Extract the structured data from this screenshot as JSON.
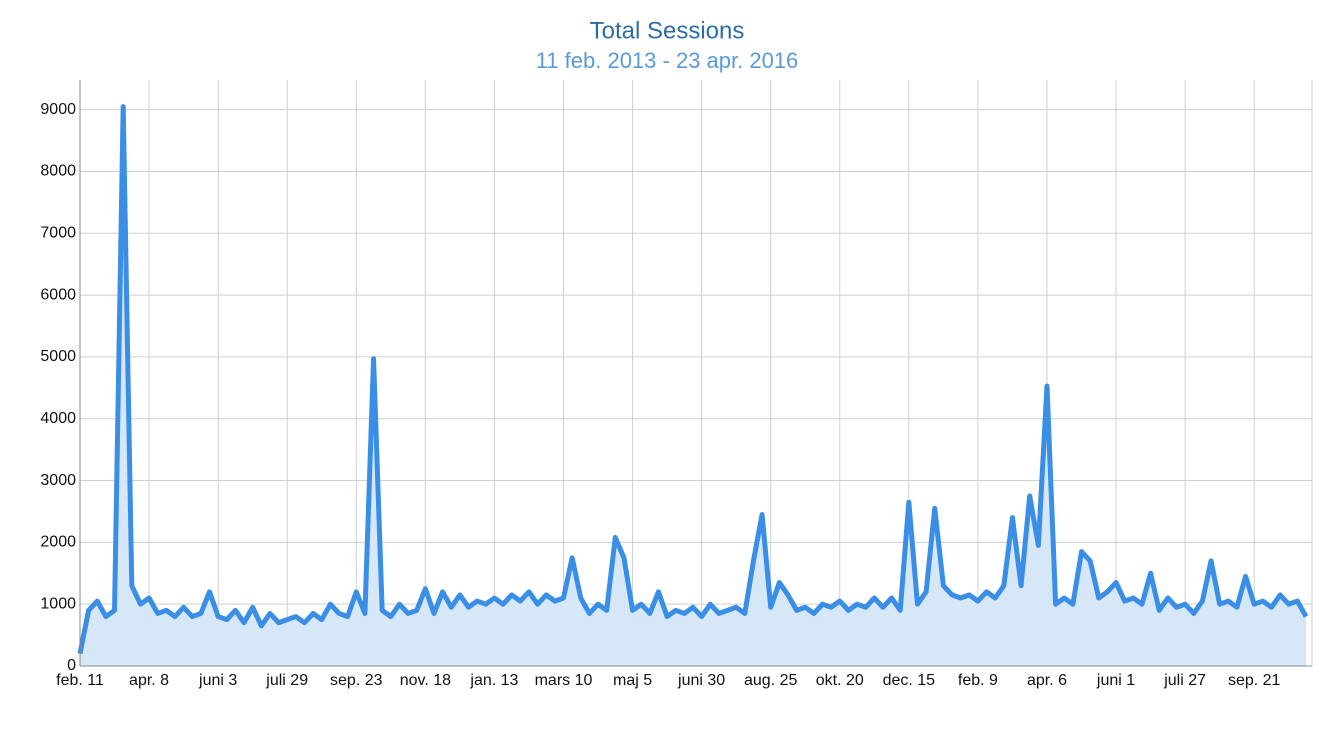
{
  "chart_data": {
    "type": "area",
    "title": "Total Sessions",
    "subtitle": "11 feb. 2013 - 23 apr. 2016",
    "categories": [
      "feb. 11",
      null,
      null,
      null,
      null,
      null,
      null,
      null,
      "apr. 8",
      null,
      null,
      null,
      null,
      null,
      null,
      null,
      "juni 3",
      null,
      null,
      null,
      null,
      null,
      null,
      null,
      "juli 29",
      null,
      null,
      null,
      null,
      null,
      null,
      null,
      "sep. 23",
      null,
      null,
      null,
      null,
      null,
      null,
      null,
      "nov. 18",
      null,
      null,
      null,
      null,
      null,
      null,
      null,
      "jan. 13",
      null,
      null,
      null,
      null,
      null,
      null,
      null,
      "mars 10",
      null,
      null,
      null,
      null,
      null,
      null,
      null,
      "maj 5",
      null,
      null,
      null,
      null,
      null,
      null,
      null,
      "juni 30",
      null,
      null,
      null,
      null,
      null,
      null,
      null,
      "aug. 25",
      null,
      null,
      null,
      null,
      null,
      null,
      null,
      "okt. 20",
      null,
      null,
      null,
      null,
      null,
      null,
      null,
      "dec. 15",
      null,
      null,
      null,
      null,
      null,
      null,
      null,
      "feb. 9",
      null,
      null,
      null,
      null,
      null,
      null,
      null,
      "apr. 6",
      null,
      null,
      null,
      null,
      null,
      null,
      null,
      "juni 1",
      null,
      null,
      null,
      null,
      null,
      null,
      null,
      "juli 27",
      null,
      null,
      null,
      null,
      null,
      null,
      null,
      "sep. 21",
      null,
      null,
      null,
      null,
      null,
      null
    ],
    "values": [
      200,
      900,
      1050,
      800,
      900,
      9050,
      1300,
      1000,
      1100,
      850,
      900,
      800,
      950,
      800,
      850,
      1200,
      800,
      750,
      900,
      700,
      950,
      650,
      850,
      700,
      750,
      800,
      700,
      850,
      750,
      1000,
      850,
      800,
      1200,
      850,
      4970,
      900,
      800,
      1000,
      850,
      900,
      1250,
      850,
      1200,
      950,
      1150,
      950,
      1050,
      1000,
      1100,
      1000,
      1150,
      1050,
      1200,
      1000,
      1150,
      1050,
      1100,
      1750,
      1100,
      850,
      1000,
      900,
      2080,
      1750,
      900,
      1000,
      850,
      1200,
      800,
      900,
      850,
      950,
      800,
      1000,
      850,
      900,
      950,
      850,
      1700,
      2450,
      950,
      1350,
      1150,
      900,
      950,
      850,
      1000,
      950,
      1050,
      900,
      1000,
      950,
      1100,
      950,
      1100,
      900,
      2650,
      1000,
      1200,
      2550,
      1300,
      1150,
      1100,
      1150,
      1050,
      1200,
      1100,
      1300,
      2400,
      1300,
      2750,
      1950,
      4530,
      1000,
      1100,
      1000,
      1850,
      1700,
      1100,
      1200,
      1350,
      1050,
      1100,
      1000,
      1500,
      900,
      1100,
      950,
      1000,
      850,
      1050,
      1700,
      1000,
      1050,
      950,
      1450,
      1000,
      1050,
      950,
      1150,
      1000,
      1050,
      800
    ],
    "color": "#3a8ee6",
    "fill_color": "#d6e8f8",
    "ylim": [
      0,
      9480
    ],
    "yticks": [
      0,
      1000,
      2000,
      3000,
      4000,
      5000,
      6000,
      7000,
      8000,
      9000
    ],
    "grid": true
  }
}
